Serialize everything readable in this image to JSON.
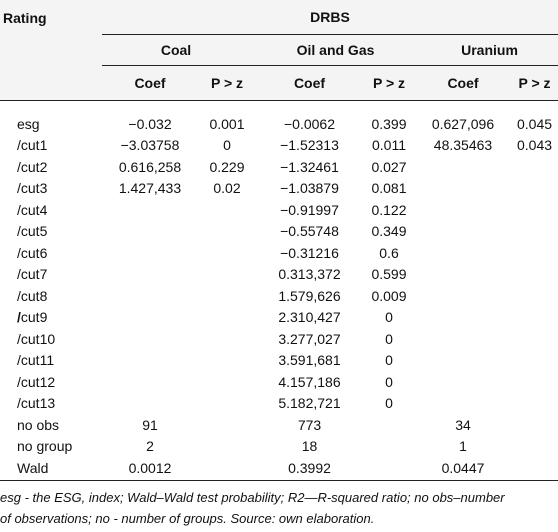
{
  "header": {
    "rating": "Rating",
    "group_title": "DRBS",
    "sectors": [
      "Coal",
      "Oil and Gas",
      "Uranium"
    ],
    "coef": "Coef",
    "pz": "P > z"
  },
  "rows": [
    {
      "label": "esg",
      "coal_coef": "−0.032",
      "coal_p": "0.001",
      "oil_coef": "−0.0062",
      "oil_p": "0.399",
      "ur_coef": "0.627,096",
      "ur_p": "0.045"
    },
    {
      "label": "/cut1",
      "coal_coef": "−3.03758",
      "coal_p": "0",
      "oil_coef": "−1.52313",
      "oil_p": "0.011",
      "ur_coef": "48.35463",
      "ur_p": "0.043"
    },
    {
      "label": "/cut2",
      "coal_coef": "0.616,258",
      "coal_p": "0.229",
      "oil_coef": "−1.32461",
      "oil_p": "0.027",
      "ur_coef": "",
      "ur_p": ""
    },
    {
      "label": "/cut3",
      "coal_coef": "1.427,433",
      "coal_p": "0.02",
      "oil_coef": "−1.03879",
      "oil_p": "0.081",
      "ur_coef": "",
      "ur_p": ""
    },
    {
      "label": "/cut4",
      "coal_coef": "",
      "coal_p": "",
      "oil_coef": "−0.91997",
      "oil_p": "0.122",
      "ur_coef": "",
      "ur_p": ""
    },
    {
      "label": "/cut5",
      "coal_coef": "",
      "coal_p": "",
      "oil_coef": "−0.55748",
      "oil_p": "0.349",
      "ur_coef": "",
      "ur_p": ""
    },
    {
      "label": "/cut6",
      "coal_coef": "",
      "coal_p": "",
      "oil_coef": "−0.31216",
      "oil_p": "0.6",
      "ur_coef": "",
      "ur_p": ""
    },
    {
      "label": "/cut7",
      "coal_coef": "",
      "coal_p": "",
      "oil_coef": "0.313,372",
      "oil_p": "0.599",
      "ur_coef": "",
      "ur_p": ""
    },
    {
      "label": "/cut8",
      "coal_coef": "",
      "coal_p": "",
      "oil_coef": "1.579,626",
      "oil_p": "0.009",
      "ur_coef": "",
      "ur_p": ""
    },
    {
      "label": "/cut9",
      "coal_coef": "",
      "coal_p": "",
      "oil_coef": "2.310,427",
      "oil_p": "0",
      "ur_coef": "",
      "ur_p": ""
    },
    {
      "label": "/cut10",
      "coal_coef": "",
      "coal_p": "",
      "oil_coef": "3.277,027",
      "oil_p": "0",
      "ur_coef": "",
      "ur_p": ""
    },
    {
      "label": "/cut11",
      "coal_coef": "",
      "coal_p": "",
      "oil_coef": "3.591,681",
      "oil_p": "0",
      "ur_coef": "",
      "ur_p": ""
    },
    {
      "label": "/cut12",
      "coal_coef": "",
      "coal_p": "",
      "oil_coef": "4.157,186",
      "oil_p": "0",
      "ur_coef": "",
      "ur_p": ""
    },
    {
      "label": "/cut13",
      "coal_coef": "",
      "coal_p": "",
      "oil_coef": "5.182,721",
      "oil_p": "0",
      "ur_coef": "",
      "ur_p": ""
    }
  ],
  "summary": [
    {
      "label": "no obs",
      "coal": "91",
      "oil": "773",
      "ur": "34"
    },
    {
      "label": "no group",
      "coal": "2",
      "oil": "18",
      "ur": "1"
    },
    {
      "label": "Wald",
      "coal": "0.0012",
      "oil": "0.3992",
      "ur": "0.0447"
    }
  ],
  "footnote": {
    "line1": "esg - the ESG, index; Wald–Wald test probability; R2—R-squared ratio; no obs–number",
    "line2": "of observations; no - number of groups. Source: own elaboration."
  }
}
